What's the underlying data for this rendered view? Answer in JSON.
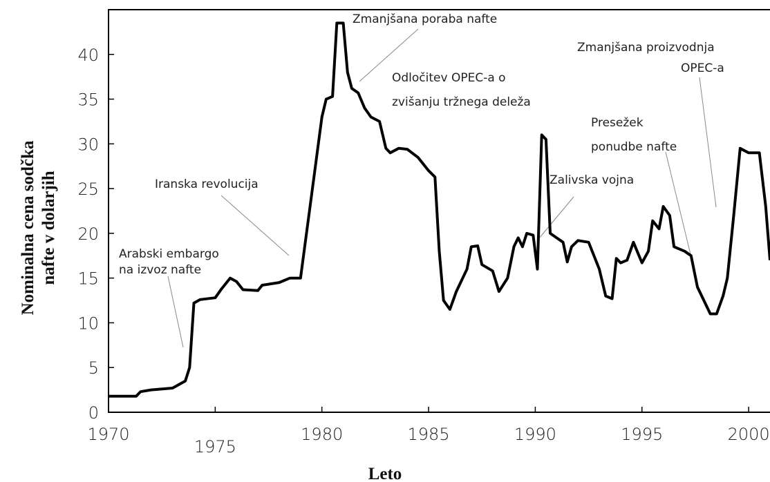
{
  "chart_data": {
    "type": "line",
    "x_label": "Leto",
    "y_label": [
      "Nominalna cena sodčka",
      "nafte v dolarjih"
    ],
    "xlim": [
      1970,
      2001
    ],
    "xticks": [
      1970,
      1975,
      1980,
      1985,
      1990,
      1995,
      2000
    ],
    "ylim": [
      0,
      45
    ],
    "yticks": [
      0,
      5,
      10,
      15,
      20,
      25,
      30,
      35,
      40
    ],
    "grid": false,
    "series": [
      {
        "color": "#000000",
        "x": [
          1970,
          1971.3,
          1971.5,
          1972,
          1973,
          1973.6,
          1973.8,
          1974.0,
          1974.3,
          1975.0,
          1975.3,
          1975.7,
          1976.0,
          1976.3,
          1977.0,
          1977.2,
          1978.0,
          1978.5,
          1979.0,
          1979.5,
          1980.0,
          1980.2,
          1980.5,
          1980.7,
          1981.0,
          1981.2,
          1981.4,
          1981.7,
          1982.0,
          1982.3,
          1982.7,
          1983.0,
          1983.2,
          1983.6,
          1984.0,
          1984.5,
          1985.0,
          1985.3,
          1985.5,
          1985.7,
          1986.0,
          1986.3,
          1986.8,
          1987.0,
          1987.3,
          1987.5,
          1988.0,
          1988.3,
          1988.7,
          1989.0,
          1989.2,
          1989.4,
          1989.6,
          1989.9,
          1990.1,
          1990.3,
          1990.5,
          1990.7,
          1991.0,
          1991.3,
          1991.5,
          1991.7,
          1992.0,
          1992.5,
          1993.0,
          1993.3,
          1993.6,
          1993.8,
          1994.0,
          1994.3,
          1994.6,
          1995.0,
          1995.3,
          1995.5,
          1995.8,
          1996.0,
          1996.3,
          1996.5,
          1997.0,
          1997.3,
          1997.6,
          1998.0,
          1998.2,
          1998.5,
          1998.8,
          1999.0,
          1999.3,
          1999.6,
          2000.0,
          2000.5,
          2000.8,
          2001.0
        ],
        "values": [
          1.8,
          1.8,
          2.3,
          2.5,
          2.7,
          3.5,
          5,
          12.2,
          12.6,
          12.8,
          13.8,
          15,
          14.6,
          13.7,
          13.6,
          14.2,
          14.5,
          15,
          15,
          24,
          33,
          35,
          35.3,
          43.5,
          43.5,
          38,
          36.2,
          35.7,
          34,
          33,
          32.5,
          29.5,
          29,
          29.5,
          29.4,
          28.5,
          27,
          26.3,
          18,
          12.5,
          11.5,
          13.5,
          16,
          18.5,
          18.6,
          16.5,
          15.8,
          13.5,
          15,
          18.5,
          19.5,
          18.5,
          20,
          19.8,
          16,
          31,
          30.5,
          20,
          19.5,
          19,
          16.8,
          18.5,
          19.2,
          19,
          16,
          13,
          12.7,
          17.2,
          16.7,
          17,
          19,
          16.7,
          18,
          21.4,
          20.5,
          23,
          22,
          18.5,
          18,
          17.5,
          14,
          12,
          11,
          11,
          13,
          15,
          22,
          29.5,
          29,
          29,
          23,
          17
        ]
      }
    ],
    "annotations": [
      {
        "lines": [
          "Arabski embargo",
          "na izvoz nafte"
        ]
      },
      {
        "lines": [
          "Iranska revolucija"
        ]
      },
      {
        "lines": [
          "Zmanjšana poraba nafte"
        ]
      },
      {
        "lines": [
          "Odločitev OPEC-a o",
          "zvišanju tržnega deleža"
        ]
      },
      {
        "lines": [
          "Presežek",
          "ponudbe nafte"
        ]
      },
      {
        "lines": [
          "Zalivska vojna"
        ]
      },
      {
        "lines": [
          "Zmanjšana proizvodnja",
          "OPEC-a"
        ]
      }
    ]
  }
}
